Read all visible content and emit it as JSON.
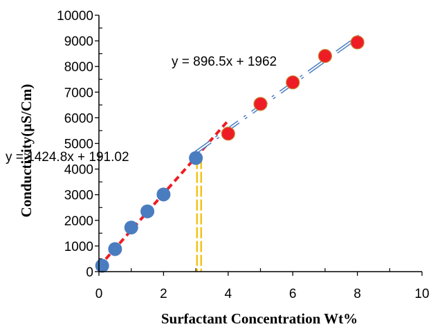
{
  "chart_data": {
    "type": "scatter",
    "title": "",
    "xlabel": "Surfactant Concentration Wt%",
    "ylabel": "Conductivity(µS/Cm)",
    "xlim": [
      0,
      10
    ],
    "ylim": [
      0,
      10000
    ],
    "x_ticks": [
      0,
      2,
      4,
      6,
      8,
      10
    ],
    "y_ticks": [
      0,
      1000,
      2000,
      3000,
      4000,
      5000,
      6000,
      7000,
      8000,
      9000,
      10000
    ],
    "grid": false,
    "legend": "none",
    "series": [
      {
        "color": "#4a7cc0",
        "x": [
          0.1,
          0.5,
          1.0,
          1.5,
          2.0,
          3.0
        ],
        "y": [
          230,
          880,
          1720,
          2350,
          3010,
          4430
        ]
      },
      {
        "color": "#ee1c24",
        "edge_color": "#c8873a",
        "x": [
          4.0,
          5.0,
          6.0,
          7.0,
          8.0
        ],
        "y": [
          5380,
          6540,
          7380,
          8410,
          8940
        ]
      }
    ],
    "trendlines": [
      {
        "equation": "y = 1424.8x + 191.02",
        "slope": 1424.8,
        "intercept": 191.02,
        "x_range": [
          0,
          4
        ],
        "color": "#ee1c24",
        "style": "dashed"
      },
      {
        "equation": "y = 896.5x + 1962",
        "slope": 896.5,
        "intercept": 1962,
        "x_range": [
          3,
          8.2
        ],
        "color": "#4a7cc0",
        "style": "dash-dot"
      }
    ],
    "marker_line": {
      "x": 3.1,
      "color": "#f2c318"
    }
  }
}
